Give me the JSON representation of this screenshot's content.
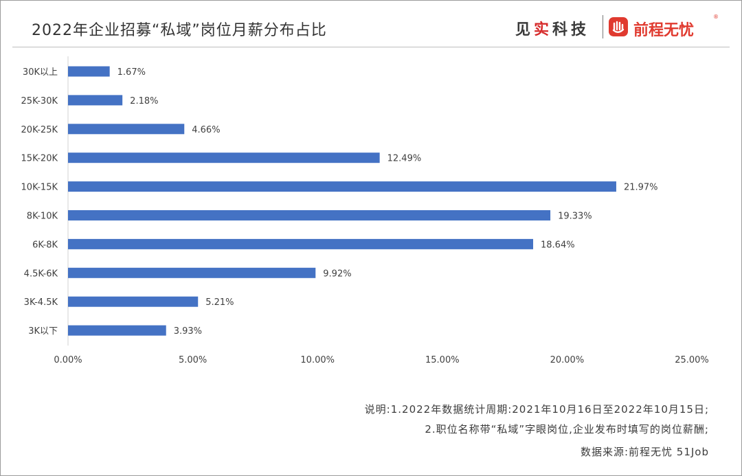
{
  "header": {
    "title": "2022年企业招募“私域”岗位月薪分布占比",
    "brand_1": {
      "pre": "见",
      "accent": "实",
      "post": "科技"
    },
    "brand_2": "前程无忧",
    "brand_2_icon": "raised-hand-logo-icon"
  },
  "colors": {
    "bar": "#4472C4",
    "brand_red": "#E03A2F"
  },
  "chart_data": {
    "type": "bar",
    "orientation": "horizontal",
    "categories": [
      "30K以上",
      "25K-30K",
      "20K-25K",
      "15K-20K",
      "10K-15K",
      "8K-10K",
      "6K-8K",
      "4.5K-6K",
      "3K-4.5K",
      "3K以下"
    ],
    "values": [
      1.67,
      2.18,
      4.66,
      12.49,
      21.97,
      19.33,
      18.64,
      9.92,
      5.21,
      3.93
    ],
    "data_labels": [
      "1.67%",
      "2.18%",
      "4.66%",
      "12.49%",
      "21.97%",
      "19.33%",
      "18.64%",
      "9.92%",
      "5.21%",
      "3.93%"
    ],
    "x_ticks": [
      0,
      5,
      10,
      15,
      20,
      25
    ],
    "x_tick_labels": [
      "0.00%",
      "5.00%",
      "10.00%",
      "15.00%",
      "20.00%",
      "25.00%"
    ],
    "xlim": [
      0,
      25
    ],
    "grid": false,
    "legend": "none"
  },
  "footer": {
    "note_1": "说明:1.2022年数据统计周期:2021年10月16日至2022年10月15日;",
    "note_2": "2.职位名称带“私域”字眼岗位,企业发布时填写的岗位薪酬;",
    "source": "数据来源:前程无忧 51Job"
  }
}
